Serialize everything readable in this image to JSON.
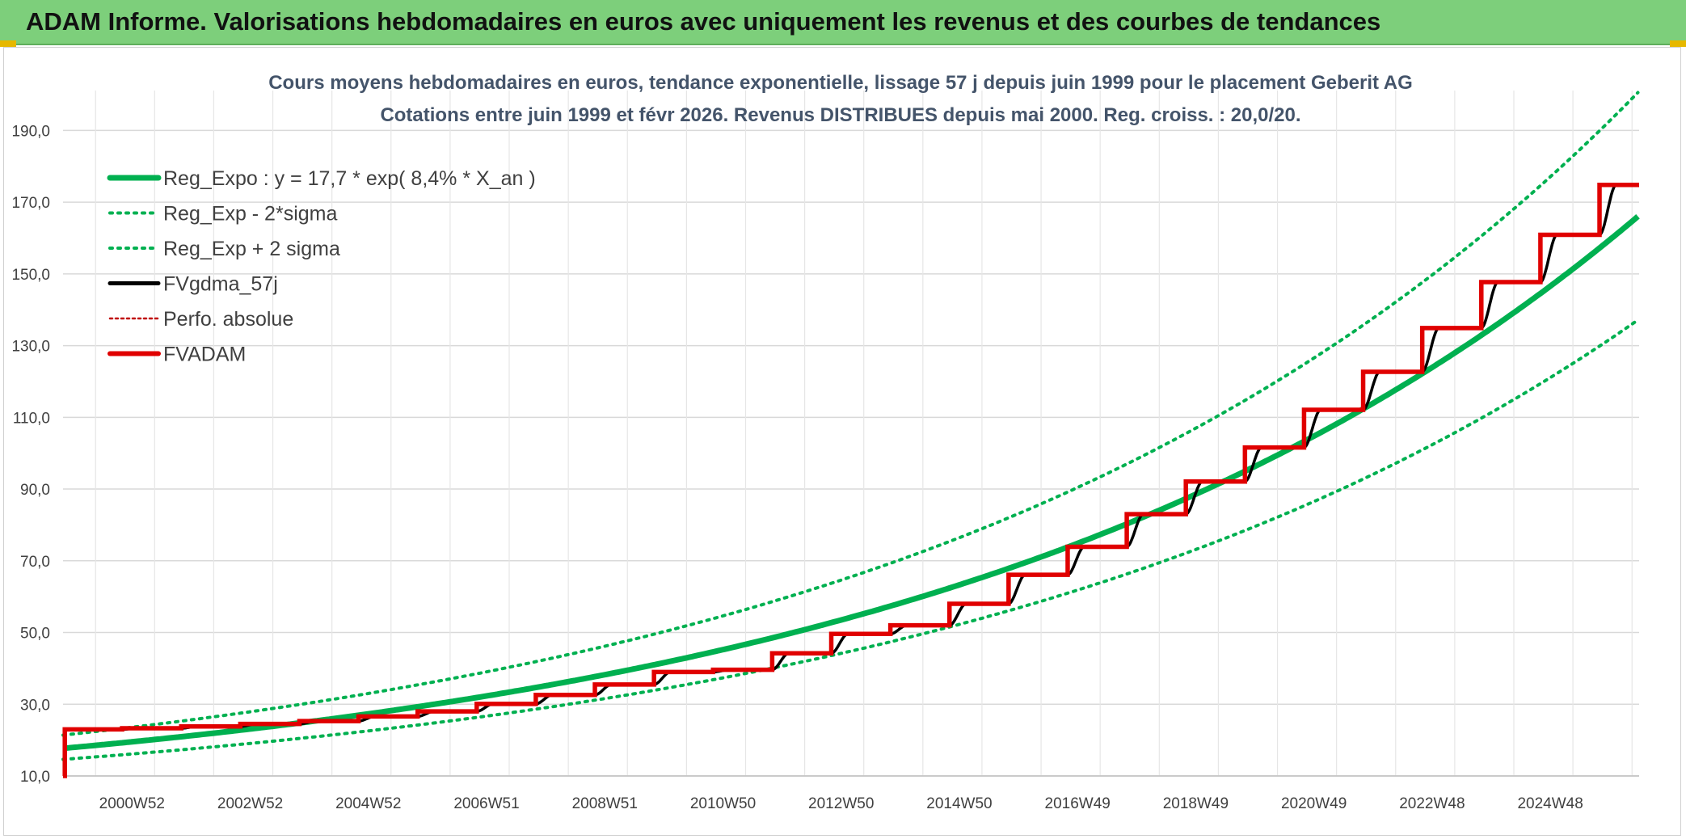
{
  "banner": {
    "title": "ADAM Informe. Valorisations hebdomadaires en euros avec uniquement les revenus et des courbes de tendances",
    "background": "#7dcf7b"
  },
  "chart_data": {
    "type": "line",
    "title": "Cours moyens hebdomadaires en euros, tendance exponentielle, lissage 57 j depuis juin 1999 pour le placement Geberit AG",
    "subtitle": "Cotations entre juin 1999 et févr 2026. Revenus DISTRIBUES depuis mai 2000. Reg. croiss. : 20,0/20.",
    "xlabel": "",
    "ylabel": "",
    "ylim": [
      10,
      200
    ],
    "yticks": [
      "10,0",
      "30,0",
      "50,0",
      "70,0",
      "90,0",
      "110,0",
      "130,0",
      "150,0",
      "170,0",
      "190,0"
    ],
    "x_range_years": [
      1999.45,
      2026.12
    ],
    "x_ticks": [
      {
        "label": "2000W52",
        "year": 2001.0
      },
      {
        "label": "2002W52",
        "year": 2003.0
      },
      {
        "label": "2004W52",
        "year": 2005.0
      },
      {
        "label": "2006W51",
        "year": 2007.0
      },
      {
        "label": "2008W51",
        "year": 2009.0
      },
      {
        "label": "2010W50",
        "year": 2011.0
      },
      {
        "label": "2012W50",
        "year": 2013.0
      },
      {
        "label": "2014W50",
        "year": 2015.0
      },
      {
        "label": "2016W49",
        "year": 2017.0
      },
      {
        "label": "2018W49",
        "year": 2019.0
      },
      {
        "label": "2020W49",
        "year": 2021.0
      },
      {
        "label": "2022W48",
        "year": 2023.0
      },
      {
        "label": "2024W48",
        "year": 2025.0
      }
    ],
    "grid": true,
    "legend_position": "top-left",
    "series": [
      {
        "name": "Reg_Expo : y = 17,7 * exp( 8,4% *  X_an )",
        "color": "#00b050",
        "style": "solid-thick",
        "base": 17.7,
        "rate": 0.084,
        "factor": 1.0
      },
      {
        "name": "Reg_Exp - 2*sigma",
        "color": "#00b050",
        "style": "dotted",
        "base": 17.7,
        "rate": 0.084,
        "factor": 0.826
      },
      {
        "name": "Reg_Exp + 2 sigma",
        "color": "#00b050",
        "style": "dotted",
        "base": 17.7,
        "rate": 0.084,
        "factor": 1.208
      },
      {
        "name": "FVgdma_57j",
        "color": "#000000",
        "style": "smooth-steps"
      },
      {
        "name": "Perfo. absolue",
        "color": "#c00000",
        "style": "dotted-thin"
      },
      {
        "name": "FVADAM",
        "color": "#e00000",
        "style": "steps",
        "steps": [
          {
            "year": 1999.45,
            "value": 10.0
          },
          {
            "year": 1999.48,
            "value": 23.0
          },
          {
            "year": 2000.45,
            "value": 23.3
          },
          {
            "year": 2001.45,
            "value": 23.8
          },
          {
            "year": 2002.45,
            "value": 24.5
          },
          {
            "year": 2003.45,
            "value": 25.3
          },
          {
            "year": 2004.45,
            "value": 26.6
          },
          {
            "year": 2005.45,
            "value": 28.0
          },
          {
            "year": 2006.45,
            "value": 30.1
          },
          {
            "year": 2007.45,
            "value": 32.6
          },
          {
            "year": 2008.45,
            "value": 35.5
          },
          {
            "year": 2009.45,
            "value": 39.0
          },
          {
            "year": 2010.45,
            "value": 39.6
          },
          {
            "year": 2011.45,
            "value": 44.2
          },
          {
            "year": 2012.45,
            "value": 49.6
          },
          {
            "year": 2013.45,
            "value": 52.0
          },
          {
            "year": 2014.45,
            "value": 58.0
          },
          {
            "year": 2015.45,
            "value": 66.1
          },
          {
            "year": 2016.45,
            "value": 73.9
          },
          {
            "year": 2017.45,
            "value": 83.0
          },
          {
            "year": 2018.45,
            "value": 92.1
          },
          {
            "year": 2019.45,
            "value": 101.6
          },
          {
            "year": 2020.45,
            "value": 112.1
          },
          {
            "year": 2021.45,
            "value": 122.7
          },
          {
            "year": 2022.45,
            "value": 134.9
          },
          {
            "year": 2023.45,
            "value": 147.7
          },
          {
            "year": 2024.45,
            "value": 160.9
          },
          {
            "year": 2025.45,
            "value": 174.8
          }
        ],
        "end_year": 2026.12
      }
    ]
  }
}
